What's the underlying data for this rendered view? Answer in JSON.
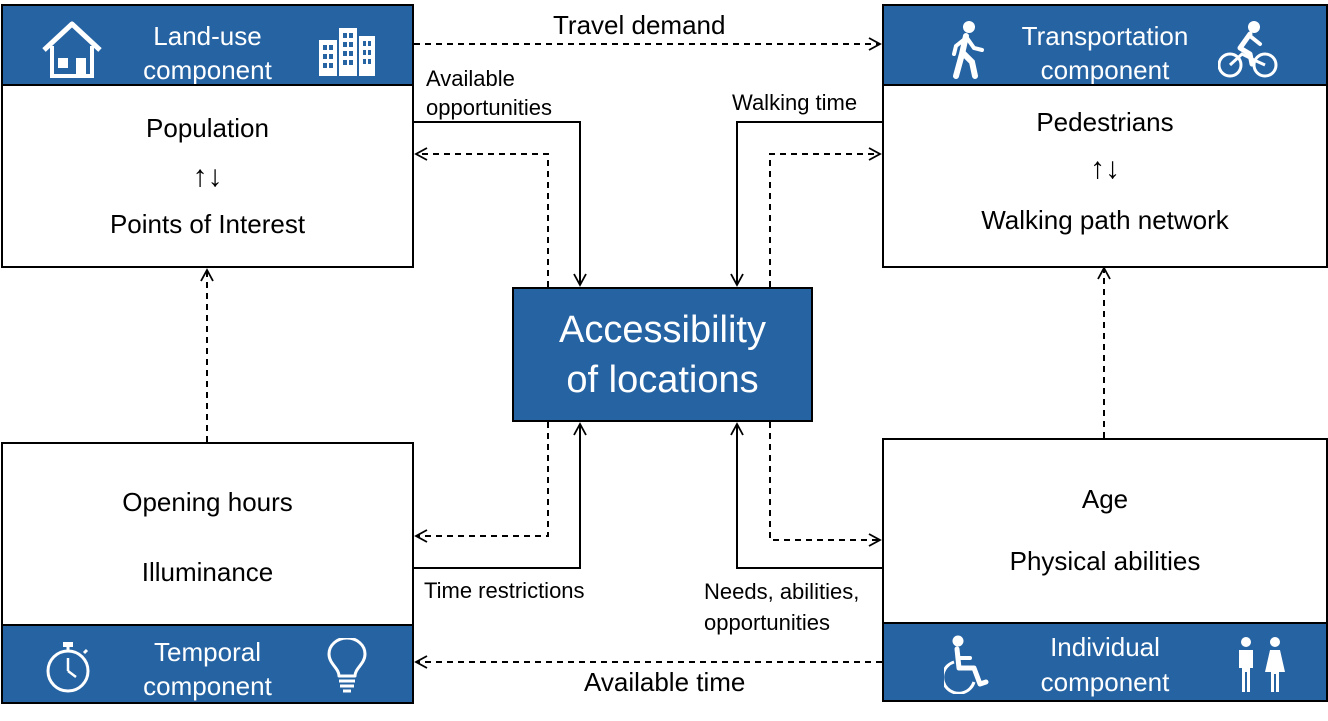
{
  "center": {
    "line1": "Accessibility",
    "line2": "of locations"
  },
  "land_use": {
    "header_line1": "Land-use",
    "header_line2": "component",
    "item1": "Population",
    "arrows": "↑↓",
    "item2": "Points of Interest",
    "icons": [
      "house-icon",
      "buildings-icon"
    ]
  },
  "transportation": {
    "header_line1": "Transportation",
    "header_line2": "component",
    "item1": "Pedestrians",
    "arrows": "↑↓",
    "item2": "Walking path network",
    "icons": [
      "pedestrian-icon",
      "cyclist-icon"
    ]
  },
  "temporal": {
    "header_line1": "Temporal",
    "header_line2": "component",
    "item1": "Opening hours",
    "item2": "Illuminance",
    "icons": [
      "stopwatch-icon",
      "lightbulb-icon"
    ]
  },
  "individual": {
    "header_line1": "Individual",
    "header_line2": "component",
    "item1": "Age",
    "item2": "Physical abilities",
    "icons": [
      "wheelchair-icon",
      "people-icon"
    ]
  },
  "links": {
    "travel_demand": "Travel demand",
    "available_opportunities_1": "Available",
    "available_opportunities_2": "opportunities",
    "walking_time": "Walking time",
    "time_restrictions": "Time restrictions",
    "needs_1": "Needs, abilities,",
    "needs_2": "opportunities",
    "available_time": "Available time"
  },
  "colors": {
    "header_fill": "#2563a3",
    "line": "#000000",
    "header_text": "#ffffff"
  }
}
